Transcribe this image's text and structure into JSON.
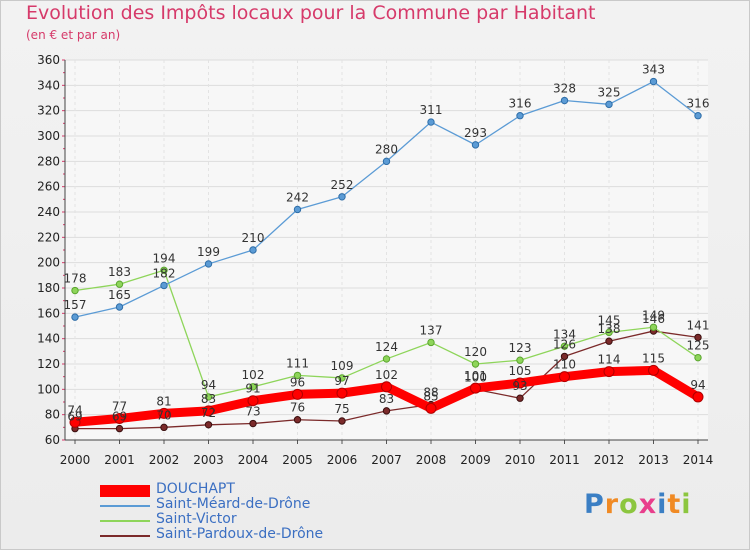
{
  "header": {
    "title": "Evolution des Impôts locaux pour la Commune par Habitant",
    "subtitle": "(en € et par an)"
  },
  "brand": {
    "text": "Proxiti",
    "colors": [
      "#3b7fc4",
      "#f08a24",
      "#8cc63f",
      "#e83e8c",
      "#3b7fc4",
      "#f08a24",
      "#8cc63f"
    ]
  },
  "chart_data": {
    "type": "line",
    "categories": [
      "2000",
      "2001",
      "2002",
      "2003",
      "2004",
      "2005",
      "2006",
      "2007",
      "2008",
      "2009",
      "2010",
      "2011",
      "2012",
      "2013",
      "2014"
    ],
    "ylim": [
      60,
      360
    ],
    "y_ticks": [
      60,
      80,
      100,
      120,
      140,
      160,
      180,
      200,
      220,
      240,
      260,
      280,
      300,
      320,
      340,
      360
    ],
    "grid": true,
    "legend_position": "bottom-left",
    "series": [
      {
        "name": "DOUCHAPT",
        "color": "#ff0000",
        "values": [
          74,
          77,
          81,
          83,
          91,
          96,
          97,
          102,
          85,
          101,
          105,
          110,
          114,
          115,
          94
        ]
      },
      {
        "name": "Saint-Méard-de-Drône",
        "color": "#5b9bd5",
        "values": [
          157,
          165,
          182,
          199,
          210,
          242,
          252,
          280,
          311,
          293,
          316,
          328,
          325,
          343,
          316
        ]
      },
      {
        "name": "Saint-Victor",
        "color": "#8ed55a",
        "values": [
          178,
          183,
          194,
          94,
          102,
          111,
          109,
          124,
          137,
          120,
          123,
          134,
          145,
          149,
          125
        ]
      },
      {
        "name": "Saint-Pardoux-de-Drône",
        "color": "#7b2a2a",
        "values": [
          69,
          69,
          70,
          72,
          73,
          76,
          75,
          83,
          88,
          100,
          93,
          126,
          138,
          146,
          141
        ]
      }
    ],
    "data_labels": {
      "DOUCHAPT": [
        "74",
        "77",
        "81",
        "83",
        "91",
        "96",
        "97",
        "102",
        "85",
        "101",
        "105",
        "110",
        "114",
        "115",
        "94"
      ],
      "Saint-Méard-de-Drône": [
        "157",
        "165",
        "182",
        "199",
        "210",
        "242",
        "252",
        "280",
        "311",
        "293",
        "316",
        "328",
        "325",
        "343",
        "316"
      ],
      "Saint-Victor": [
        "178",
        "183",
        "194",
        "94",
        "102",
        "111",
        "109",
        "124",
        "137",
        "120",
        "123",
        "134",
        "145",
        "149",
        "125"
      ],
      "Saint-Pardoux-de-Drône": [
        "69",
        "69",
        "70",
        "72",
        "73",
        "76",
        "75",
        "83",
        "88",
        "100",
        "93",
        "126",
        "138",
        "146",
        "141"
      ]
    }
  }
}
